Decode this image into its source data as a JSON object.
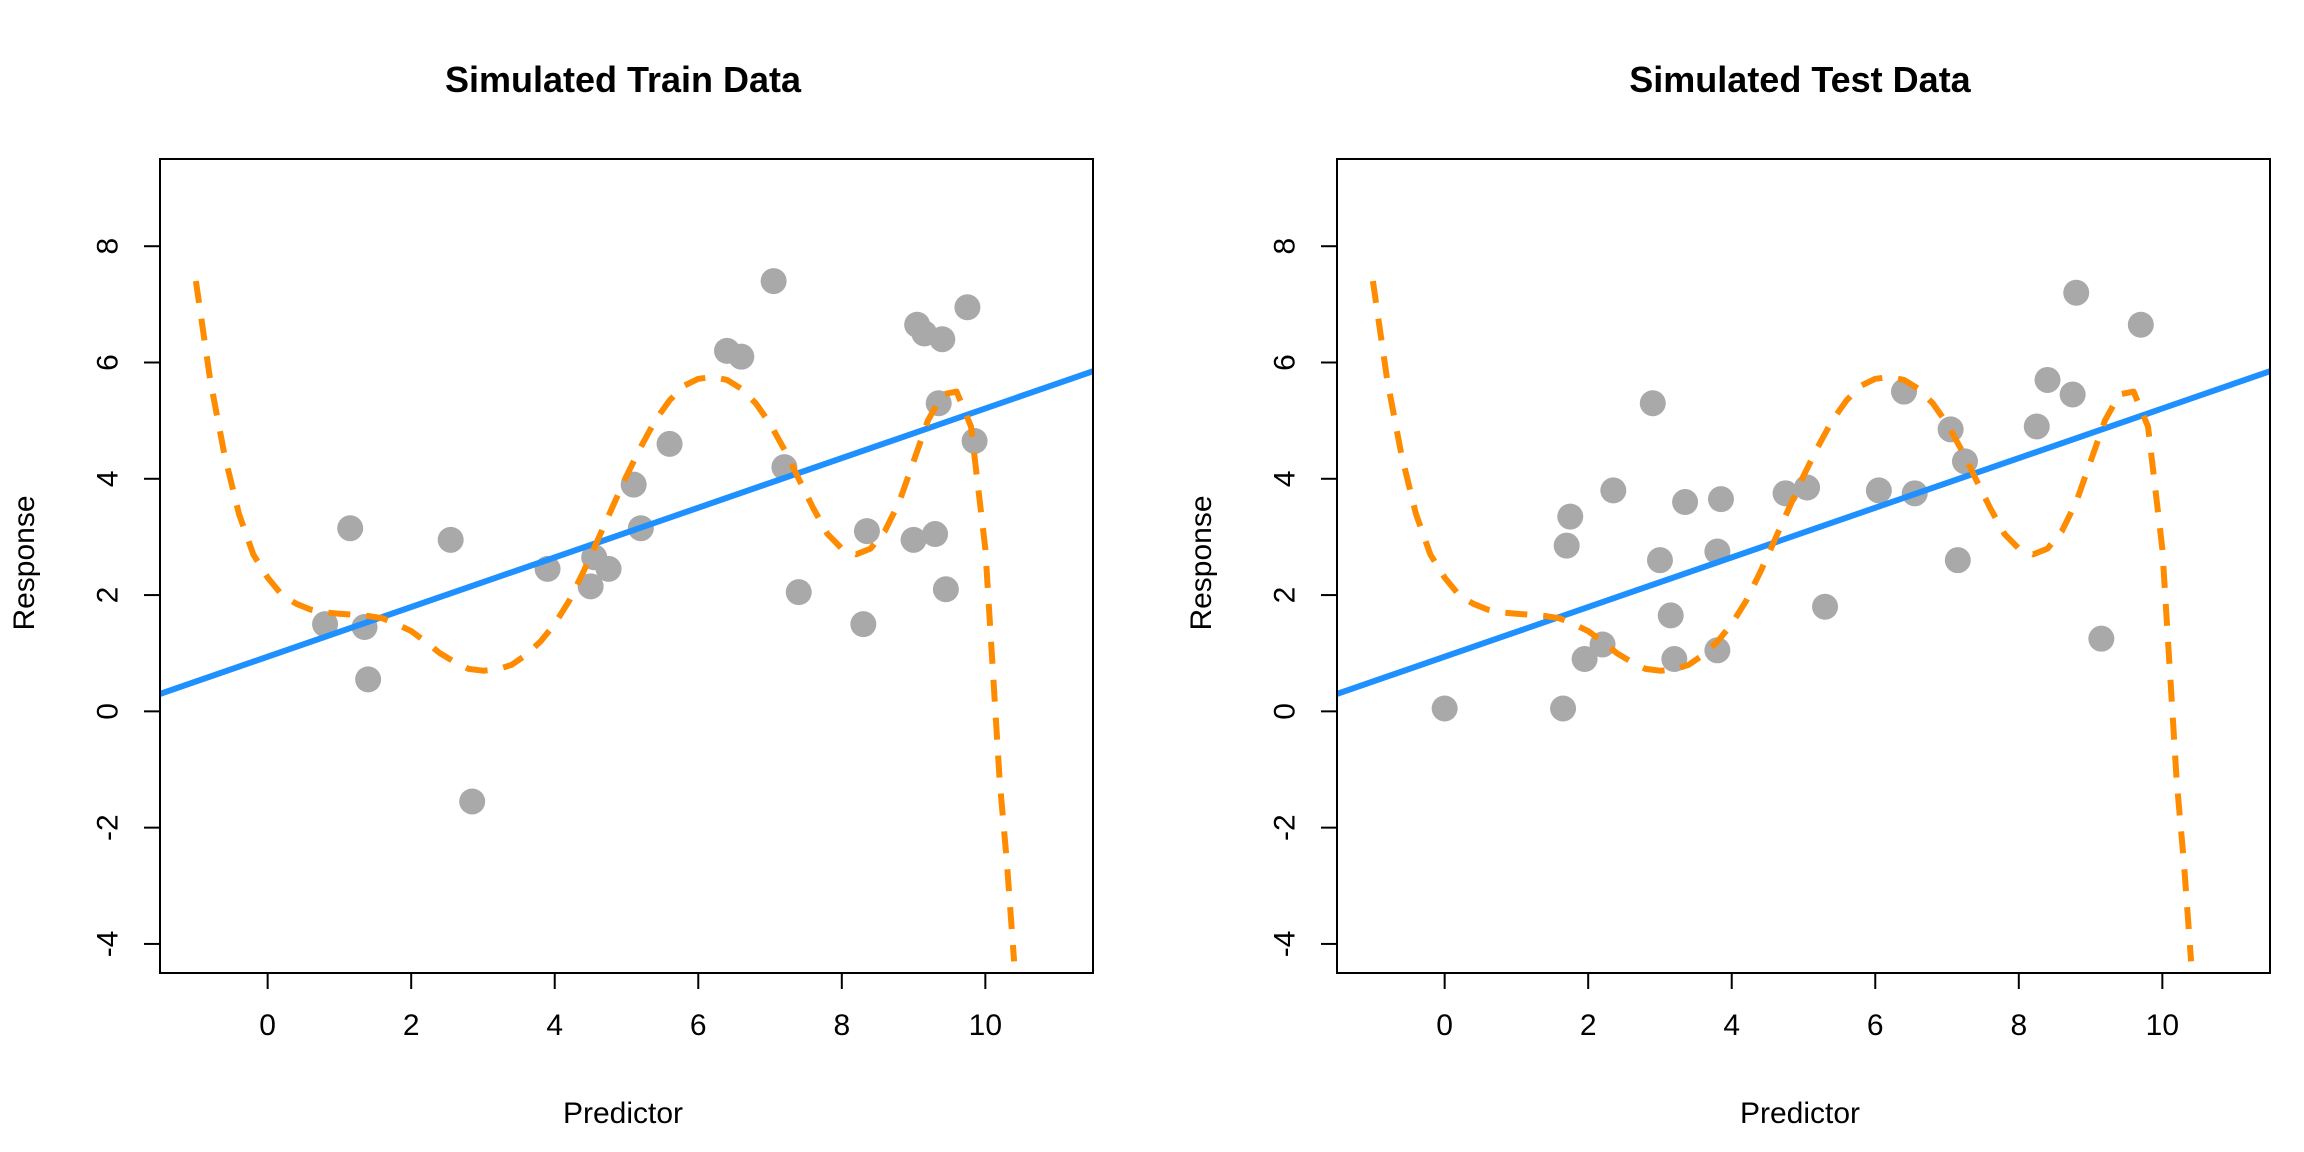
{
  "colors": {
    "points": "#A9A9A9",
    "linear_fit": "#1E90FF",
    "poly_fit": "#FF8C00",
    "axis": "#000000"
  },
  "chart_data": [
    {
      "type": "scatter",
      "title": "Simulated Train Data",
      "xlabel": "Predictor",
      "ylabel": "Response",
      "xlim": [
        -1.5,
        11.5
      ],
      "ylim": [
        -4.5,
        9.5
      ],
      "xticks": [
        0,
        2,
        4,
        6,
        8,
        10
      ],
      "yticks": [
        -4,
        -2,
        0,
        2,
        4,
        6,
        8
      ],
      "xtick_labels": [
        "0",
        "2",
        "4",
        "6",
        "8",
        "10"
      ],
      "ytick_labels": [
        "-4",
        "-2",
        "0",
        "2",
        "4",
        "6",
        "8"
      ],
      "grid": false,
      "points": [
        {
          "x": 0.8,
          "y": 1.5
        },
        {
          "x": 1.15,
          "y": 3.15
        },
        {
          "x": 1.35,
          "y": 1.45
        },
        {
          "x": 1.4,
          "y": 0.55
        },
        {
          "x": 2.55,
          "y": 2.95
        },
        {
          "x": 2.85,
          "y": -1.55
        },
        {
          "x": 3.9,
          "y": 2.45
        },
        {
          "x": 4.5,
          "y": 2.15
        },
        {
          "x": 4.55,
          "y": 2.65
        },
        {
          "x": 4.75,
          "y": 2.45
        },
        {
          "x": 5.1,
          "y": 3.9
        },
        {
          "x": 5.2,
          "y": 3.15
        },
        {
          "x": 5.6,
          "y": 4.6
        },
        {
          "x": 6.4,
          "y": 6.2
        },
        {
          "x": 6.6,
          "y": 6.1
        },
        {
          "x": 7.05,
          "y": 7.4
        },
        {
          "x": 7.2,
          "y": 4.2
        },
        {
          "x": 7.4,
          "y": 2.05
        },
        {
          "x": 8.3,
          "y": 1.5
        },
        {
          "x": 8.35,
          "y": 3.1
        },
        {
          "x": 9.0,
          "y": 2.95
        },
        {
          "x": 9.05,
          "y": 6.65
        },
        {
          "x": 9.15,
          "y": 6.5
        },
        {
          "x": 9.3,
          "y": 3.05
        },
        {
          "x": 9.35,
          "y": 5.3
        },
        {
          "x": 9.4,
          "y": 6.4
        },
        {
          "x": 9.45,
          "y": 2.1
        },
        {
          "x": 9.75,
          "y": 6.95
        },
        {
          "x": 9.85,
          "y": 4.65
        }
      ],
      "linear_fit": {
        "x": [
          -1.5,
          11.5
        ],
        "y": [
          0.3,
          5.85
        ]
      },
      "poly_fit": {
        "x": [
          -1.0,
          -0.8,
          -0.6,
          -0.4,
          -0.2,
          0.0,
          0.2,
          0.4,
          0.6,
          0.8,
          1.0,
          1.2,
          1.4,
          1.6,
          1.8,
          2.0,
          2.2,
          2.4,
          2.6,
          2.8,
          3.0,
          3.2,
          3.4,
          3.6,
          3.8,
          4.0,
          4.2,
          4.4,
          4.6,
          4.8,
          5.0,
          5.2,
          5.4,
          5.6,
          5.8,
          6.0,
          6.2,
          6.4,
          6.6,
          6.8,
          7.0,
          7.2,
          7.4,
          7.6,
          7.8,
          8.0,
          8.2,
          8.4,
          8.6,
          8.8,
          9.0,
          9.2,
          9.4,
          9.6,
          9.8,
          10.0,
          10.1,
          10.2,
          10.3,
          10.4
        ],
        "y": [
          7.4,
          5.7,
          4.4,
          3.4,
          2.7,
          2.3,
          2.0,
          1.85,
          1.75,
          1.7,
          1.68,
          1.66,
          1.64,
          1.6,
          1.5,
          1.38,
          1.2,
          1.0,
          0.85,
          0.73,
          0.7,
          0.72,
          0.8,
          0.97,
          1.2,
          1.5,
          1.9,
          2.4,
          2.95,
          3.5,
          4.05,
          4.55,
          5.0,
          5.35,
          5.6,
          5.72,
          5.75,
          5.7,
          5.55,
          5.3,
          4.95,
          4.5,
          4.0,
          3.5,
          3.05,
          2.8,
          2.7,
          2.8,
          3.1,
          3.6,
          4.3,
          5.0,
          5.45,
          5.5,
          4.9,
          2.8,
          0.8,
          -1.2,
          -2.6,
          -4.3
        ]
      }
    },
    {
      "type": "scatter",
      "title": "Simulated Test Data",
      "xlabel": "Predictor",
      "ylabel": "Response",
      "xlim": [
        -1.5,
        11.5
      ],
      "ylim": [
        -4.5,
        9.5
      ],
      "xticks": [
        0,
        2,
        4,
        6,
        8,
        10
      ],
      "yticks": [
        -4,
        -2,
        0,
        2,
        4,
        6,
        8
      ],
      "xtick_labels": [
        "0",
        "2",
        "4",
        "6",
        "8",
        "10"
      ],
      "ytick_labels": [
        "-4",
        "-2",
        "0",
        "2",
        "4",
        "6",
        "8"
      ],
      "grid": false,
      "points": [
        {
          "x": 0.0,
          "y": 0.05
        },
        {
          "x": 1.65,
          "y": 0.05
        },
        {
          "x": 1.7,
          "y": 2.85
        },
        {
          "x": 1.75,
          "y": 3.35
        },
        {
          "x": 1.95,
          "y": 0.9
        },
        {
          "x": 2.2,
          "y": 1.15
        },
        {
          "x": 2.35,
          "y": 3.8
        },
        {
          "x": 2.9,
          "y": 5.3
        },
        {
          "x": 3.0,
          "y": 2.6
        },
        {
          "x": 3.15,
          "y": 1.65
        },
        {
          "x": 3.2,
          "y": 0.9
        },
        {
          "x": 3.35,
          "y": 3.6
        },
        {
          "x": 3.8,
          "y": 2.75
        },
        {
          "x": 3.8,
          "y": 1.05
        },
        {
          "x": 3.85,
          "y": 3.65
        },
        {
          "x": 4.75,
          "y": 3.75
        },
        {
          "x": 5.05,
          "y": 3.85
        },
        {
          "x": 5.3,
          "y": 1.8
        },
        {
          "x": 6.05,
          "y": 3.8
        },
        {
          "x": 6.4,
          "y": 5.5
        },
        {
          "x": 6.55,
          "y": 3.75
        },
        {
          "x": 7.05,
          "y": 4.85
        },
        {
          "x": 7.15,
          "y": 2.6
        },
        {
          "x": 7.25,
          "y": 4.3
        },
        {
          "x": 8.25,
          "y": 4.9
        },
        {
          "x": 8.4,
          "y": 5.7
        },
        {
          "x": 8.75,
          "y": 5.45
        },
        {
          "x": 8.8,
          "y": 7.2
        },
        {
          "x": 9.15,
          "y": 1.25
        },
        {
          "x": 9.7,
          "y": 6.65
        }
      ],
      "linear_fit": {
        "x": [
          -1.5,
          11.5
        ],
        "y": [
          0.3,
          5.85
        ]
      },
      "poly_fit": {
        "x": [
          -1.0,
          -0.8,
          -0.6,
          -0.4,
          -0.2,
          0.0,
          0.2,
          0.4,
          0.6,
          0.8,
          1.0,
          1.2,
          1.4,
          1.6,
          1.8,
          2.0,
          2.2,
          2.4,
          2.6,
          2.8,
          3.0,
          3.2,
          3.4,
          3.6,
          3.8,
          4.0,
          4.2,
          4.4,
          4.6,
          4.8,
          5.0,
          5.2,
          5.4,
          5.6,
          5.8,
          6.0,
          6.2,
          6.4,
          6.6,
          6.8,
          7.0,
          7.2,
          7.4,
          7.6,
          7.8,
          8.0,
          8.2,
          8.4,
          8.6,
          8.8,
          9.0,
          9.2,
          9.4,
          9.6,
          9.8,
          10.0,
          10.1,
          10.2,
          10.3,
          10.4
        ],
        "y": [
          7.4,
          5.7,
          4.4,
          3.4,
          2.7,
          2.3,
          2.0,
          1.85,
          1.75,
          1.7,
          1.68,
          1.66,
          1.64,
          1.6,
          1.5,
          1.38,
          1.2,
          1.0,
          0.85,
          0.73,
          0.7,
          0.72,
          0.8,
          0.97,
          1.2,
          1.5,
          1.9,
          2.4,
          2.95,
          3.5,
          4.05,
          4.55,
          5.0,
          5.35,
          5.6,
          5.72,
          5.75,
          5.7,
          5.55,
          5.3,
          4.95,
          4.5,
          4.0,
          3.5,
          3.05,
          2.8,
          2.7,
          2.8,
          3.1,
          3.6,
          4.3,
          5.0,
          5.45,
          5.5,
          4.9,
          2.8,
          0.8,
          -1.2,
          -2.6,
          -4.3
        ]
      }
    }
  ]
}
